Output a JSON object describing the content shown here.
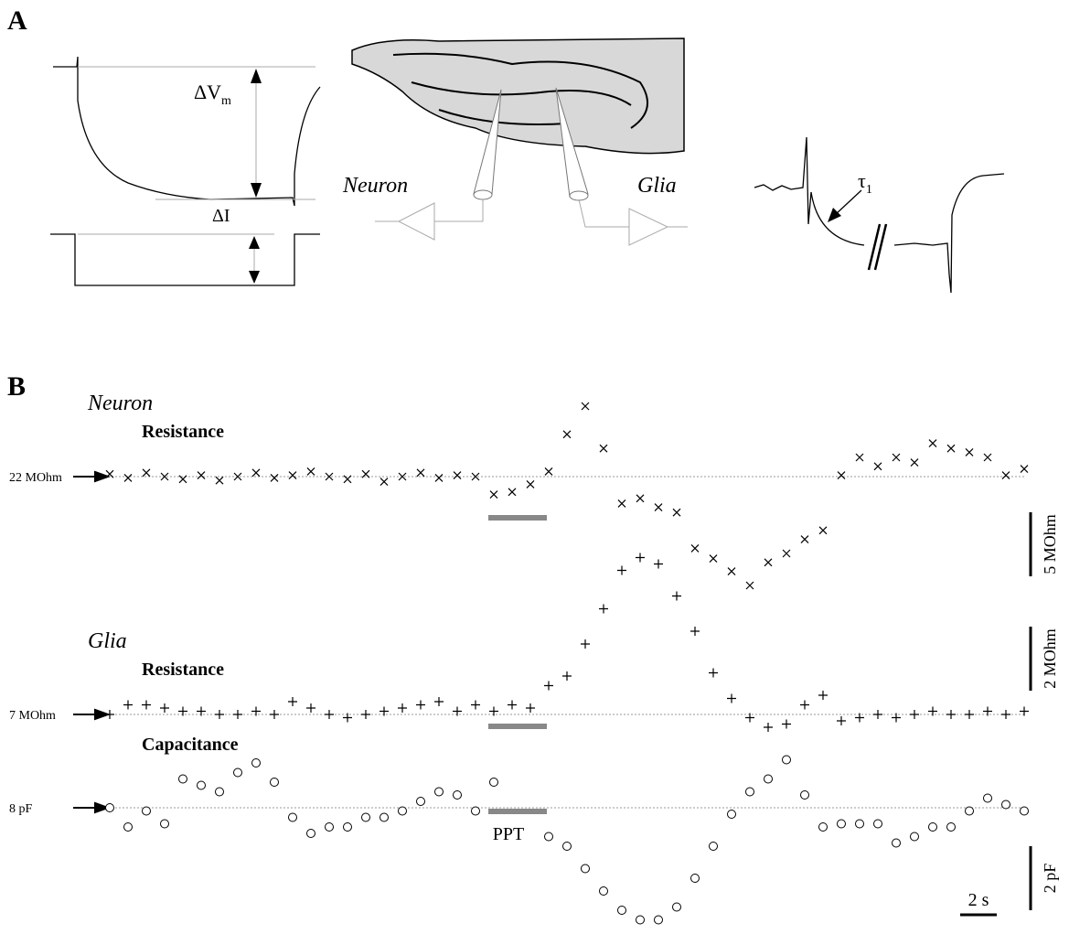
{
  "panel_a": {
    "label": "A",
    "delta_v": {
      "main": "ΔV",
      "sub": "m"
    },
    "delta_i": "ΔI",
    "neuron": "Neuron",
    "glia": "Glia",
    "tau": {
      "main": "τ",
      "sub": "1"
    }
  },
  "panel_b": {
    "label": "B",
    "time_s": [
      0,
      1,
      2,
      3,
      4,
      5,
      6,
      7,
      8,
      9,
      10,
      11,
      12,
      13,
      14,
      15,
      16,
      17,
      18,
      19,
      20,
      21,
      22,
      23,
      24,
      25,
      26,
      27,
      28,
      29,
      30,
      31,
      32,
      33,
      34,
      35,
      36,
      37,
      38,
      39,
      40,
      41,
      42,
      43,
      44,
      45,
      46,
      47,
      48,
      49,
      50
    ],
    "time_bar": {
      "value": 2,
      "label": "2 s"
    },
    "stimulus": {
      "label": "PPT",
      "start": 20.7,
      "end": 23.9
    },
    "traces": [
      {
        "cell": "Neuron",
        "name": "Resistance",
        "marker": "x",
        "baseline": {
          "value": 22,
          "label": "22 MOhm"
        },
        "scale": {
          "value": 5,
          "label": "5 MOhm"
        },
        "values": [
          22.2,
          21.9,
          22.3,
          22.0,
          21.8,
          22.1,
          21.7,
          22.0,
          22.3,
          21.9,
          22.1,
          22.4,
          22.0,
          21.8,
          22.2,
          21.6,
          22.0,
          22.3,
          21.9,
          22.1,
          22.0,
          20.6,
          20.8,
          21.4,
          22.4,
          25.3,
          27.5,
          24.2,
          19.9,
          20.3,
          19.6,
          19.2,
          16.4,
          15.6,
          14.6,
          13.5,
          15.3,
          16.0,
          17.1,
          17.8,
          22.1,
          23.5,
          22.8,
          23.5,
          23.1,
          24.6,
          24.2,
          23.9,
          23.5,
          22.1,
          22.6
        ]
      },
      {
        "cell": "Glia",
        "name": "Resistance",
        "marker": "+",
        "baseline": {
          "value": 7,
          "label": "7 MOhm"
        },
        "scale": {
          "value": 2,
          "label": "2 MOhm"
        },
        "values": [
          7.0,
          7.3,
          7.3,
          7.2,
          7.1,
          7.1,
          7.0,
          7.0,
          7.1,
          7.0,
          7.4,
          7.2,
          7.0,
          6.9,
          7.0,
          7.1,
          7.2,
          7.3,
          7.4,
          7.1,
          7.3,
          7.1,
          7.3,
          7.2,
          7.9,
          8.2,
          9.2,
          10.3,
          11.5,
          11.9,
          11.7,
          10.7,
          9.6,
          8.3,
          7.5,
          6.9,
          6.6,
          6.7,
          7.3,
          7.6,
          6.8,
          6.9,
          7.0,
          6.9,
          7.0,
          7.1,
          7.0,
          7.0,
          7.1,
          7.0,
          7.1
        ]
      },
      {
        "name": "Capacitance",
        "marker": "o",
        "baseline": {
          "value": 8,
          "label": "8 pF"
        },
        "scale": {
          "value": 2,
          "label": "2 pF"
        },
        "values": [
          8.0,
          7.4,
          7.9,
          7.5,
          8.9,
          8.7,
          8.5,
          9.1,
          9.4,
          8.8,
          7.7,
          7.2,
          7.4,
          7.4,
          7.7,
          7.7,
          7.9,
          8.2,
          8.5,
          8.4,
          7.9,
          8.8,
          null,
          null,
          7.1,
          6.8,
          6.1,
          5.4,
          4.8,
          4.5,
          4.5,
          4.9,
          5.8,
          6.8,
          7.8,
          8.5,
          8.9,
          9.5,
          8.4,
          7.4,
          7.5,
          7.5,
          7.5,
          6.9,
          7.1,
          7.4,
          7.4,
          7.9,
          8.3,
          8.1,
          7.9
        ]
      }
    ]
  }
}
